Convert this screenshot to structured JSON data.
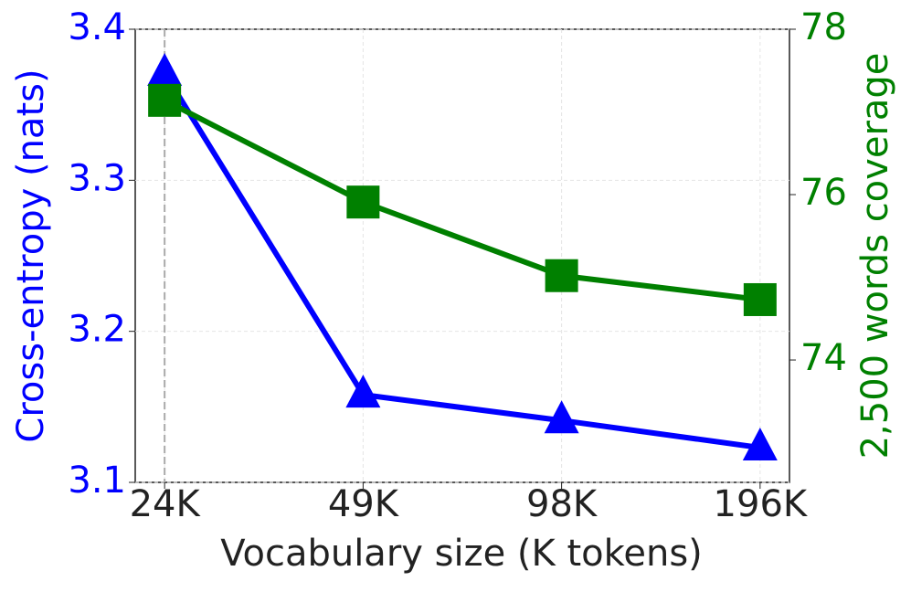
{
  "chart_data": {
    "type": "line",
    "xlabel": "Vocabulary size (K tokens)",
    "ylabel": "Cross-entropy (nats)",
    "y2label": "2,500 words coverage",
    "categories": [
      "24K",
      "49K",
      "98K",
      "196K"
    ],
    "series": [
      {
        "name": "Cross-entropy (nats)",
        "color": "#0000ff",
        "marker": "triangle",
        "values": [
          3.371,
          3.158,
          3.141,
          3.123
        ]
      },
      {
        "name": "2,500 words coverage",
        "color": "#008000",
        "marker": "square",
        "axis": "y2",
        "values": [
          77.14,
          75.91,
          75.02,
          74.73
        ]
      }
    ],
    "ylim": [
      3.1,
      3.4
    ],
    "yticks": [
      3.1,
      3.2,
      3.3,
      3.4
    ],
    "y2lim": [
      72.52,
      78
    ],
    "y2ticks": [
      74,
      76,
      78
    ],
    "grid": true
  }
}
